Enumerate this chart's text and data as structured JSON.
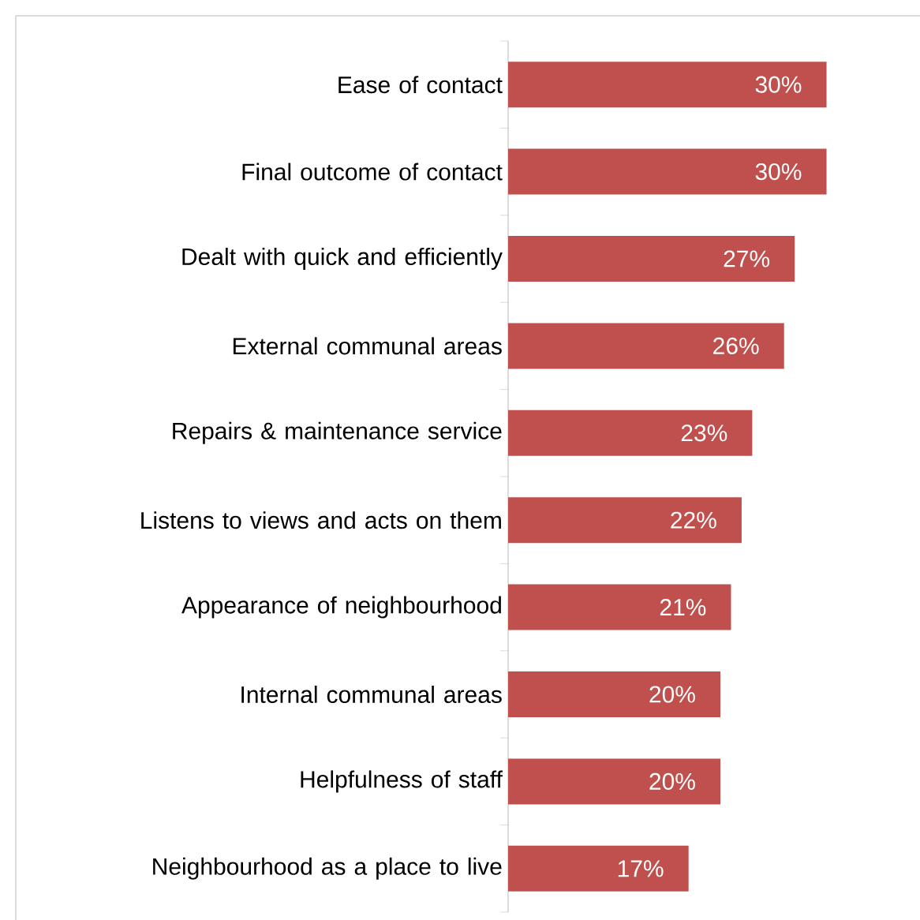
{
  "chart_data": {
    "type": "bar",
    "orientation": "horizontal",
    "color": "#c0504d",
    "categories": [
      "Ease of contact",
      "Final outcome of contact",
      "Dealt with quick and efficiently",
      "External communal areas",
      "Repairs & maintenance service",
      "Listens to views and acts on them",
      "Appearance of neighbourhood",
      "Internal communal areas",
      "Helpfulness of staff",
      "Neighbourhood as a place to live"
    ],
    "values": [
      30,
      30,
      27,
      26,
      23,
      22,
      21,
      20,
      20,
      17
    ],
    "value_labels": [
      "30%",
      "30%",
      "27%",
      "26%",
      "23%",
      "22%",
      "21%",
      "20%",
      "20%",
      "17%"
    ]
  }
}
